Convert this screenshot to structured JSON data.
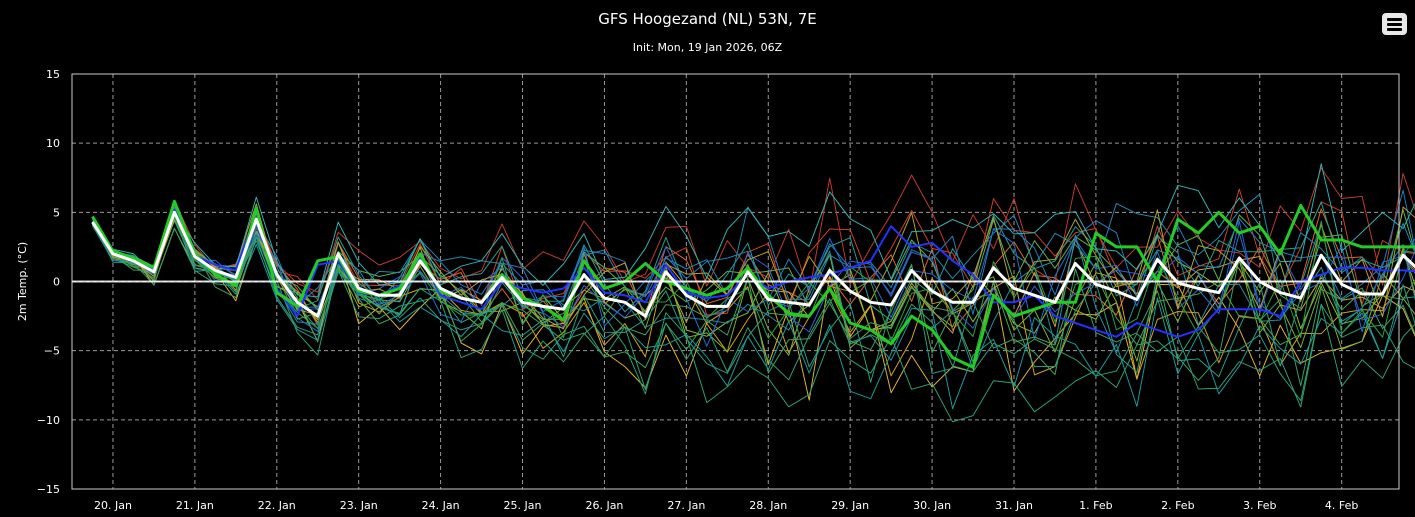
{
  "chart_data": {
    "type": "line",
    "title": "GFS Hoogezand (NL) 53N, 7E",
    "subtitle": "Init: Mon, 19 Jan 2026, 06Z",
    "ylabel": "2m Temp. (°C)",
    "ylim": [
      -15,
      15
    ],
    "yticks": [
      15,
      10,
      5,
      0,
      -5,
      -10,
      -15
    ],
    "ytick_labels": [
      "15",
      "10",
      "5",
      "0",
      "−5",
      "−10",
      "−15"
    ],
    "xlim": [
      0,
      16.2
    ],
    "xticks": [
      0.5,
      1.5,
      2.5,
      3.5,
      4.5,
      5.5,
      6.5,
      7.5,
      8.5,
      9.5,
      10.5,
      11.5,
      12.5,
      13.5,
      14.5,
      15.5
    ],
    "xtick_labels": [
      "20. Jan",
      "21. Jan",
      "22. Jan",
      "23. Jan",
      "24. Jan",
      "25. Jan",
      "26. Jan",
      "27. Jan",
      "28. Jan",
      "29. Jan",
      "30. Jan",
      "31. Jan",
      "1. Feb",
      "2. Feb",
      "3. Feb",
      "4. Feb"
    ],
    "time_step_days": 0.25,
    "grid": true,
    "legend": "none",
    "main_series": [
      {
        "color": "#ffffff",
        "width": 3,
        "values": [
          4.3,
          2.0,
          1.5,
          0.7,
          5.0,
          1.8,
          0.8,
          0.3,
          4.5,
          0.5,
          -1.5,
          -2.5,
          2.0,
          -0.5,
          -1.0,
          -1.0,
          1.5,
          -0.5,
          -1.2,
          -1.5,
          0.3,
          -1.5,
          -1.8,
          -2.0,
          0.5,
          -1.2,
          -1.5,
          -2.5,
          0.7,
          -1.0,
          -1.8,
          -1.8,
          0.7,
          -1.3,
          -1.5,
          -1.7,
          0.8,
          -0.7,
          -1.5,
          -1.7,
          0.8,
          -0.7,
          -1.5,
          -1.5,
          1.0,
          -0.5,
          -1.0,
          -1.5,
          1.3,
          -0.2,
          -0.7,
          -1.3,
          1.6,
          -0.1,
          -0.5,
          -0.8,
          1.7,
          0.0,
          -0.8,
          -1.2,
          1.9,
          -0.2,
          -0.9,
          -0.9,
          1.9,
          0.5,
          0.0,
          -0.3
        ]
      },
      {
        "color": "#22cc22",
        "width": 3,
        "values": [
          4.7,
          2.2,
          1.7,
          1.0,
          5.8,
          2.0,
          0.5,
          -0.3,
          5.3,
          -0.8,
          -1.8,
          1.5,
          1.8,
          -0.7,
          -1.0,
          -0.5,
          2.0,
          -0.7,
          -1.2,
          -1.5,
          0.5,
          -1.2,
          -1.8,
          -2.8,
          1.5,
          -0.5,
          0.0,
          1.3,
          0.0,
          -0.5,
          -1.0,
          -0.5,
          1.0,
          -1.0,
          -2.3,
          -2.5,
          -0.5,
          -3.0,
          -3.5,
          -4.5,
          -2.5,
          -3.5,
          -5.5,
          -6.2,
          -1.0,
          -2.5,
          -2.0,
          -1.5,
          -1.5,
          3.5,
          2.5,
          2.5,
          0.0,
          4.5,
          3.5,
          5.0,
          3.5,
          4.0,
          2.0,
          5.5,
          3.0,
          3.0,
          2.5,
          2.5,
          2.5,
          2.5,
          2.5,
          2.4
        ]
      },
      {
        "color": "#2233ff",
        "width": 2,
        "values": [
          4.5,
          2.1,
          1.6,
          0.8,
          5.2,
          1.9,
          1.2,
          0.8,
          5.0,
          -0.5,
          -2.5,
          1.2,
          1.5,
          -0.8,
          -1.0,
          -0.3,
          1.8,
          -1.0,
          -1.5,
          -2.0,
          0.0,
          -0.5,
          -0.8,
          -0.5,
          1.0,
          -0.8,
          -1.0,
          -1.5,
          1.2,
          -0.8,
          -1.2,
          -1.0,
          0.5,
          -0.5,
          0.0,
          0.3,
          0.5,
          1.0,
          1.5,
          4.0,
          2.5,
          2.8,
          1.5,
          0.5,
          -1.5,
          -1.5,
          -1.0,
          -2.5,
          -3.0,
          -3.5,
          -4.0,
          -3.0,
          -3.5,
          -4.0,
          -3.5,
          -2.0,
          -2.0,
          -2.0,
          -2.5,
          0.0,
          0.5,
          1.0,
          1.0,
          0.8,
          0.8,
          0.7,
          0.7,
          0.6
        ]
      }
    ],
    "ensemble": {
      "line_width": 1,
      "members": [
        {
          "color": "#d04020",
          "seed": 11,
          "scale": 1.2,
          "bias": 1.5
        },
        {
          "color": "#c0392b",
          "seed": 12,
          "scale": 1.3,
          "bias": 2.5
        },
        {
          "color": "#e06030",
          "seed": 13,
          "scale": 1.1,
          "bias": 0.5
        },
        {
          "color": "#d4a017",
          "seed": 14,
          "scale": 1.2,
          "bias": -1.5
        },
        {
          "color": "#e0b030",
          "seed": 15,
          "scale": 1.4,
          "bias": -2.5
        },
        {
          "color": "#c8a040",
          "seed": 16,
          "scale": 1.0,
          "bias": 0.0
        },
        {
          "color": "#8fbc2f",
          "seed": 17,
          "scale": 1.1,
          "bias": -0.5
        },
        {
          "color": "#7ab030",
          "seed": 18,
          "scale": 1.2,
          "bias": -1.0
        },
        {
          "color": "#5ab04a",
          "seed": 19,
          "scale": 1.0,
          "bias": 0.8
        },
        {
          "color": "#3aa060",
          "seed": 20,
          "scale": 1.3,
          "bias": -2.0
        },
        {
          "color": "#2e9e6e",
          "seed": 21,
          "scale": 1.1,
          "bias": -3.0
        },
        {
          "color": "#24a080",
          "seed": 22,
          "scale": 1.2,
          "bias": -1.8
        },
        {
          "color": "#1f9f8f",
          "seed": 23,
          "scale": 1.0,
          "bias": 1.0
        },
        {
          "color": "#2090a0",
          "seed": 24,
          "scale": 1.3,
          "bias": -0.8
        },
        {
          "color": "#2088b0",
          "seed": 25,
          "scale": 1.2,
          "bias": 2.0
        },
        {
          "color": "#1e7fc0",
          "seed": 26,
          "scale": 1.1,
          "bias": 1.2
        },
        {
          "color": "#2070d0",
          "seed": 27,
          "scale": 1.4,
          "bias": -0.2
        },
        {
          "color": "#3060d8",
          "seed": 28,
          "scale": 1.0,
          "bias": 0.3
        },
        {
          "color": "#1a9a9a",
          "seed": 29,
          "scale": 1.2,
          "bias": -2.8
        },
        {
          "color": "#4aa050",
          "seed": 30,
          "scale": 1.1,
          "bias": -1.2
        },
        {
          "color": "#b0a030",
          "seed": 31,
          "scale": 1.2,
          "bias": 0.6
        },
        {
          "color": "#28a070",
          "seed": 32,
          "scale": 1.3,
          "bias": -3.5
        },
        {
          "color": "#30b0b0",
          "seed": 33,
          "scale": 1.0,
          "bias": 2.8
        },
        {
          "color": "#2aa040",
          "seed": 34,
          "scale": 1.1,
          "bias": -0.3
        }
      ]
    }
  }
}
